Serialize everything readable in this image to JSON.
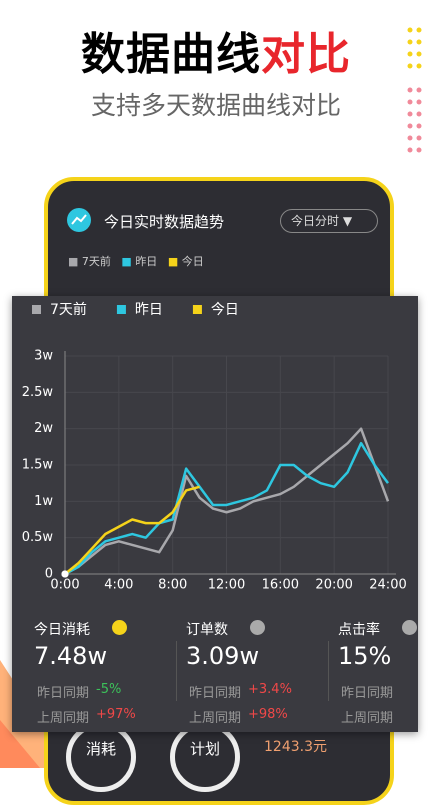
{
  "header": {
    "title_main": "数据曲线",
    "title_highlight": "对比",
    "subtitle": "支持多天数据曲线对比"
  },
  "card": {
    "title": "今日实时数据趋势",
    "dropdown": "今日分时",
    "legend": [
      "7天前",
      "昨日",
      "今日"
    ]
  },
  "chart_data": {
    "type": "line",
    "x": [
      0,
      1,
      2,
      3,
      4,
      5,
      6,
      7,
      8,
      9,
      10,
      11,
      12,
      13,
      14,
      15,
      16,
      17,
      18,
      19,
      20,
      21,
      22,
      23,
      24
    ],
    "series": [
      {
        "name": "7天前",
        "color": "#a8a8ac",
        "values": [
          0,
          1000,
          2500,
          4000,
          4500,
          4000,
          3500,
          3000,
          6000,
          13500,
          10500,
          9000,
          8500,
          9000,
          10000,
          10500,
          11000,
          12000,
          13500,
          15000,
          16500,
          18000,
          20000,
          15000,
          10000
        ]
      },
      {
        "name": "昨日",
        "color": "#2ec7e0",
        "values": [
          0,
          1000,
          3000,
          4500,
          5000,
          5500,
          5000,
          7000,
          7500,
          14500,
          12000,
          9500,
          9500,
          10000,
          10500,
          11500,
          15000,
          15000,
          13500,
          12500,
          12000,
          14000,
          18000,
          15000,
          12500
        ]
      },
      {
        "name": "今日",
        "color": "#f5d31a",
        "values": [
          0,
          1500,
          3500,
          5500,
          6500,
          7500,
          7000,
          7000,
          8500,
          11500,
          12000,
          null,
          null,
          null,
          null,
          null,
          null,
          null,
          null,
          null,
          null,
          null,
          null,
          null,
          null
        ]
      }
    ],
    "xlim": [
      0,
      24
    ],
    "xticks": [
      {
        "value": 0,
        "label": "0:00"
      },
      {
        "value": 4,
        "label": "4:00"
      },
      {
        "value": 8,
        "label": "8:00"
      },
      {
        "value": 12,
        "label": "12:00"
      },
      {
        "value": 16,
        "label": "16:00"
      },
      {
        "value": 20,
        "label": "20:00"
      },
      {
        "value": 24,
        "label": "24:00"
      }
    ],
    "ylim": [
      0,
      30000
    ],
    "yticks": [
      0,
      {
        "value": 5000,
        "label": "0.5w"
      },
      {
        "value": 10000,
        "label": "1w"
      },
      {
        "value": 15000,
        "label": "1.5w"
      },
      {
        "value": 20000,
        "label": "2w"
      },
      {
        "value": 25000,
        "label": "2.5w"
      },
      {
        "value": 30000,
        "label": "3w"
      }
    ],
    "grid": true
  },
  "stats": [
    {
      "label": "今日消耗",
      "value": "7.48w",
      "row1": "昨日同期",
      "delta1": "-5%",
      "row2": "上周同期",
      "delta2": "+97%"
    },
    {
      "label": "订单数",
      "value": "3.09w",
      "row1": "昨日同期",
      "delta1": "+3.4%",
      "row2": "上周同期",
      "delta2": "+98%"
    },
    {
      "label": "点击率",
      "value": "15%",
      "row1": "昨日同期",
      "row2": "上周同期"
    }
  ],
  "footer": {
    "button1": "消耗",
    "button2": "计划",
    "amount": "1243.3元"
  }
}
